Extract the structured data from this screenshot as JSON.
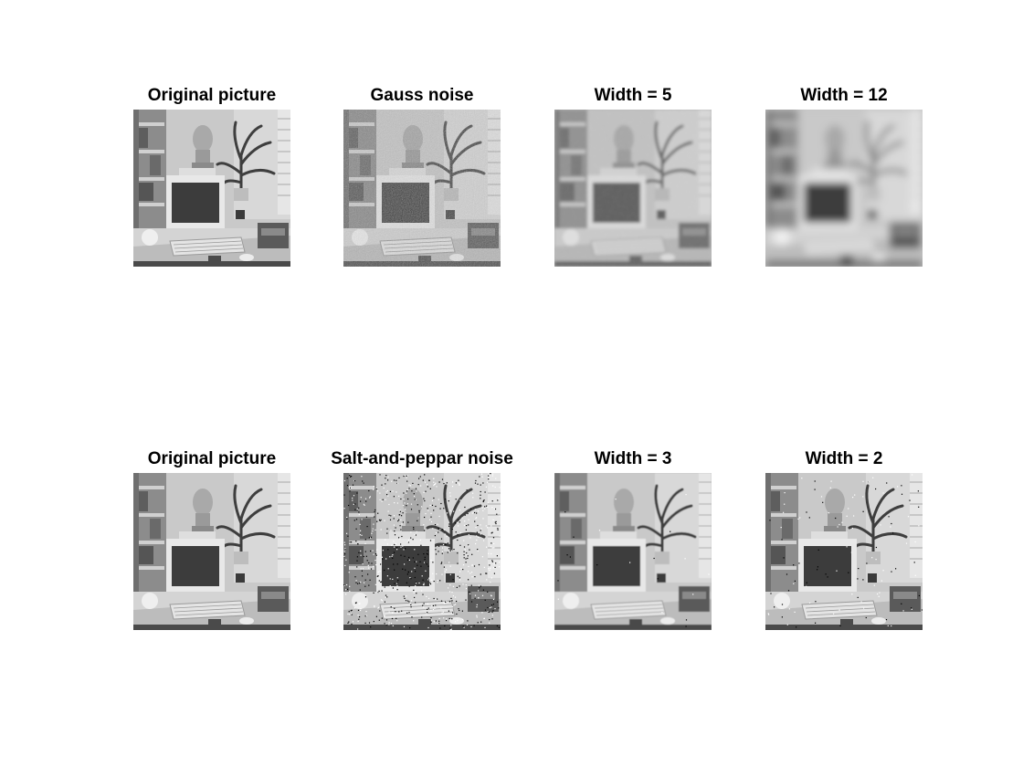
{
  "figure": {
    "panels": [
      {
        "title": "Original picture",
        "noise": "none",
        "blur": 0
      },
      {
        "title": "Gauss noise",
        "noise": "gauss",
        "blur": 0
      },
      {
        "title": "Width = 5",
        "noise": "gauss-filtered",
        "blur": 1.6
      },
      {
        "title": "Width = 12",
        "noise": "gauss-filtered",
        "blur": 4.5
      },
      {
        "title": "Original picture",
        "noise": "none",
        "blur": 0
      },
      {
        "title": "Salt-and-peppar noise",
        "noise": "saltpepper",
        "blur": 0
      },
      {
        "title": "Width = 3",
        "noise": "median-filtered",
        "blur": 0.4
      },
      {
        "title": "Width = 2",
        "noise": "median-partial",
        "blur": 0.2
      }
    ]
  }
}
